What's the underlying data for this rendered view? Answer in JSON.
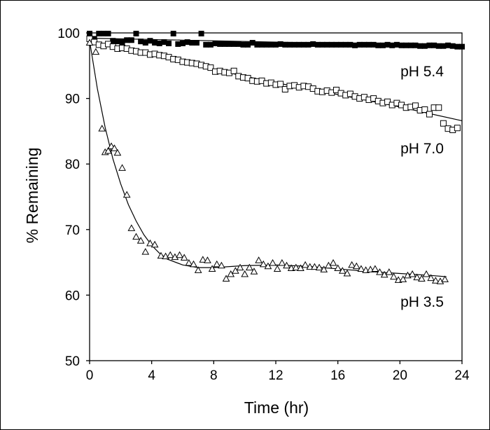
{
  "chart_data": {
    "type": "scatter",
    "title": "",
    "xlabel": "Time (hr)",
    "ylabel": "% Remaining",
    "xlim": [
      0,
      24
    ],
    "ylim": [
      50,
      100
    ],
    "x_ticks": [
      0,
      4,
      8,
      12,
      16,
      20,
      24
    ],
    "y_ticks": [
      50,
      60,
      70,
      80,
      90,
      100
    ],
    "grid": false,
    "legend": "none",
    "series": [
      {
        "name": "pH 5.4",
        "marker": "filled-square",
        "color": "#000000",
        "fit": [
          [
            0,
            99.2
          ],
          [
            6,
            98.9
          ],
          [
            12,
            98.6
          ],
          [
            18,
            98.3
          ],
          [
            24,
            98.0
          ]
        ],
        "points": [
          [
            0,
            99.9
          ],
          [
            0.3,
            99.1
          ],
          [
            0.6,
            99.9
          ],
          [
            0.9,
            99.9
          ],
          [
            1.2,
            99.9
          ],
          [
            1.5,
            98.8
          ],
          [
            1.8,
            98.7
          ],
          [
            2.1,
            98.6
          ],
          [
            2.4,
            98.9
          ],
          [
            2.7,
            98.9
          ],
          [
            3.0,
            99.9
          ],
          [
            3.3,
            98.7
          ],
          [
            3.6,
            98.5
          ],
          [
            3.9,
            98.8
          ],
          [
            4.2,
            98.5
          ],
          [
            4.5,
            98.4
          ],
          [
            4.8,
            98.6
          ],
          [
            5.1,
            98.4
          ],
          [
            5.4,
            99.9
          ],
          [
            5.7,
            98.3
          ],
          [
            6.0,
            98.4
          ],
          [
            6.3,
            98.6
          ],
          [
            6.6,
            98.5
          ],
          [
            6.9,
            98.5
          ],
          [
            7.2,
            99.9
          ],
          [
            7.5,
            98.2
          ],
          [
            7.8,
            98.2
          ],
          [
            8.1,
            98.4
          ],
          [
            8.4,
            98.3
          ],
          [
            8.7,
            98.3
          ],
          [
            9.0,
            98.3
          ],
          [
            9.3,
            98.3
          ],
          [
            9.6,
            98.3
          ],
          [
            9.9,
            98.2
          ],
          [
            10.2,
            98.2
          ],
          [
            10.5,
            98.5
          ],
          [
            10.8,
            98.2
          ],
          [
            11.1,
            98.2
          ],
          [
            11.4,
            98.2
          ],
          [
            11.7,
            98.2
          ],
          [
            12.0,
            98.2
          ],
          [
            12.3,
            98.3
          ],
          [
            12.6,
            98.2
          ],
          [
            12.9,
            98.2
          ],
          [
            13.2,
            98.2
          ],
          [
            13.5,
            98.2
          ],
          [
            13.8,
            98.2
          ],
          [
            14.1,
            98.2
          ],
          [
            14.4,
            98.3
          ],
          [
            14.7,
            98.2
          ],
          [
            15.0,
            98.2
          ],
          [
            15.3,
            98.2
          ],
          [
            15.6,
            98.2
          ],
          [
            15.9,
            98.2
          ],
          [
            16.2,
            98.2
          ],
          [
            16.5,
            98.2
          ],
          [
            16.8,
            98.2
          ],
          [
            17.1,
            98.1
          ],
          [
            17.4,
            98.2
          ],
          [
            17.7,
            98.2
          ],
          [
            18.0,
            98.2
          ],
          [
            18.3,
            98.2
          ],
          [
            18.6,
            98.1
          ],
          [
            18.9,
            98.1
          ],
          [
            19.2,
            98.2
          ],
          [
            19.5,
            98.1
          ],
          [
            19.8,
            98.2
          ],
          [
            20.1,
            98.1
          ],
          [
            20.4,
            98.1
          ],
          [
            20.7,
            98.1
          ],
          [
            21.0,
            98.1
          ],
          [
            21.3,
            98.0
          ],
          [
            21.6,
            98.0
          ],
          [
            21.9,
            98.1
          ],
          [
            22.2,
            98.1
          ],
          [
            22.5,
            98.0
          ],
          [
            22.8,
            98.0
          ],
          [
            23.1,
            98.1
          ],
          [
            23.4,
            98.0
          ],
          [
            23.7,
            97.9
          ],
          [
            24.0,
            97.9
          ]
        ]
      },
      {
        "name": "pH 7.0",
        "marker": "open-square",
        "color": "#000000",
        "fit": [
          [
            0,
            98.8
          ],
          [
            4,
            96.6
          ],
          [
            8,
            94.4
          ],
          [
            12,
            92.4
          ],
          [
            16,
            90.6
          ],
          [
            20,
            88.7
          ],
          [
            24,
            86.6
          ]
        ],
        "points": [
          [
            0,
            99.1
          ],
          [
            0.3,
            98.6
          ],
          [
            0.6,
            98.2
          ],
          [
            0.9,
            98.0
          ],
          [
            1.2,
            98.3
          ],
          [
            1.5,
            97.9
          ],
          [
            1.8,
            97.6
          ],
          [
            2.1,
            97.7
          ],
          [
            2.4,
            97.6
          ],
          [
            2.7,
            97.3
          ],
          [
            3.0,
            97.2
          ],
          [
            3.3,
            97.0
          ],
          [
            3.6,
            97.0
          ],
          [
            3.9,
            96.7
          ],
          [
            4.2,
            96.8
          ],
          [
            4.5,
            96.6
          ],
          [
            4.8,
            96.5
          ],
          [
            5.1,
            96.3
          ],
          [
            5.4,
            96.0
          ],
          [
            5.7,
            95.9
          ],
          [
            6.0,
            95.6
          ],
          [
            6.3,
            95.5
          ],
          [
            6.6,
            95.4
          ],
          [
            6.9,
            95.3
          ],
          [
            7.2,
            95.1
          ],
          [
            7.5,
            94.9
          ],
          [
            7.8,
            94.7
          ],
          [
            8.1,
            94.1
          ],
          [
            8.4,
            94.2
          ],
          [
            8.7,
            94.0
          ],
          [
            9.0,
            93.9
          ],
          [
            9.3,
            94.2
          ],
          [
            9.6,
            93.4
          ],
          [
            9.9,
            93.2
          ],
          [
            10.2,
            93.1
          ],
          [
            10.5,
            92.7
          ],
          [
            10.8,
            92.6
          ],
          [
            11.1,
            92.7
          ],
          [
            11.4,
            92.3
          ],
          [
            11.7,
            92.4
          ],
          [
            12.0,
            92.1
          ],
          [
            12.3,
            92.2
          ],
          [
            12.6,
            91.4
          ],
          [
            12.9,
            91.9
          ],
          [
            13.2,
            92.0
          ],
          [
            13.5,
            91.7
          ],
          [
            13.8,
            91.9
          ],
          [
            14.1,
            91.8
          ],
          [
            14.4,
            91.5
          ],
          [
            14.7,
            91.1
          ],
          [
            15.0,
            91.0
          ],
          [
            15.3,
            91.2
          ],
          [
            15.6,
            90.9
          ],
          [
            15.9,
            91.3
          ],
          [
            16.2,
            90.8
          ],
          [
            16.5,
            90.5
          ],
          [
            16.8,
            90.7
          ],
          [
            17.1,
            90.3
          ],
          [
            17.4,
            90.0
          ],
          [
            17.7,
            90.2
          ],
          [
            18.0,
            89.8
          ],
          [
            18.3,
            90.0
          ],
          [
            18.6,
            89.6
          ],
          [
            18.9,
            89.3
          ],
          [
            19.2,
            89.5
          ],
          [
            19.5,
            89.0
          ],
          [
            19.8,
            89.3
          ],
          [
            20.1,
            89.0
          ],
          [
            20.4,
            88.6
          ],
          [
            20.7,
            88.7
          ],
          [
            21.0,
            88.9
          ],
          [
            21.3,
            88.2
          ],
          [
            21.6,
            88.3
          ],
          [
            21.9,
            87.6
          ],
          [
            22.2,
            88.6
          ],
          [
            22.5,
            88.6
          ],
          [
            22.8,
            86.2
          ],
          [
            23.1,
            85.4
          ],
          [
            23.4,
            85.2
          ],
          [
            23.7,
            85.5
          ]
        ]
      },
      {
        "name": "pH 3.5",
        "marker": "open-triangle",
        "color": "#000000",
        "fit": [
          [
            0,
            98.8
          ],
          [
            0.5,
            91.5
          ],
          [
            1,
            85.6
          ],
          [
            1.5,
            80.8
          ],
          [
            2,
            77.0
          ],
          [
            2.5,
            73.8
          ],
          [
            3,
            71.3
          ],
          [
            3.5,
            69.2
          ],
          [
            4,
            67.6
          ],
          [
            4.5,
            66.4
          ],
          [
            5,
            65.5
          ],
          [
            6,
            64.6
          ],
          [
            7,
            64.2
          ],
          [
            8,
            64.2
          ],
          [
            10,
            64.5
          ],
          [
            12,
            64.6
          ],
          [
            14,
            64.4
          ],
          [
            16,
            64.0
          ],
          [
            18,
            63.6
          ],
          [
            20,
            63.3
          ],
          [
            22,
            63.0
          ],
          [
            23,
            62.8
          ]
        ],
        "points": [
          [
            0,
            98.5
          ],
          [
            0.4,
            97.1
          ],
          [
            0.8,
            85.4
          ],
          [
            1.0,
            81.8
          ],
          [
            1.2,
            82.0
          ],
          [
            1.4,
            82.7
          ],
          [
            1.6,
            82.4
          ],
          [
            1.8,
            81.7
          ],
          [
            2.1,
            79.4
          ],
          [
            2.4,
            75.3
          ],
          [
            2.7,
            70.2
          ],
          [
            3.0,
            68.9
          ],
          [
            3.3,
            68.3
          ],
          [
            3.6,
            66.6
          ],
          [
            3.9,
            67.9
          ],
          [
            4.2,
            67.7
          ],
          [
            4.6,
            66.0
          ],
          [
            4.9,
            65.9
          ],
          [
            5.2,
            66.1
          ],
          [
            5.5,
            65.8
          ],
          [
            5.8,
            66.1
          ],
          [
            6.1,
            65.7
          ],
          [
            6.4,
            64.9
          ],
          [
            6.7,
            64.7
          ],
          [
            7.0,
            63.8
          ],
          [
            7.3,
            65.4
          ],
          [
            7.6,
            65.3
          ],
          [
            7.9,
            64.0
          ],
          [
            8.2,
            64.7
          ],
          [
            8.5,
            64.5
          ],
          [
            8.8,
            62.5
          ],
          [
            9.1,
            63.2
          ],
          [
            9.4,
            63.7
          ],
          [
            9.7,
            64.2
          ],
          [
            10.0,
            63.2
          ],
          [
            10.3,
            64.2
          ],
          [
            10.6,
            63.6
          ],
          [
            10.9,
            65.3
          ],
          [
            11.2,
            64.7
          ],
          [
            11.5,
            64.4
          ],
          [
            11.8,
            64.9
          ],
          [
            12.1,
            64.0
          ],
          [
            12.4,
            64.9
          ],
          [
            12.7,
            64.5
          ],
          [
            13.0,
            64.1
          ],
          [
            13.3,
            64.2
          ],
          [
            13.6,
            64.1
          ],
          [
            13.9,
            64.6
          ],
          [
            14.2,
            64.3
          ],
          [
            14.5,
            64.3
          ],
          [
            14.8,
            64.2
          ],
          [
            15.1,
            63.9
          ],
          [
            15.4,
            64.5
          ],
          [
            15.7,
            64.9
          ],
          [
            16.0,
            64.1
          ],
          [
            16.3,
            63.7
          ],
          [
            16.6,
            63.3
          ],
          [
            16.9,
            64.6
          ],
          [
            17.2,
            64.4
          ],
          [
            17.5,
            64.0
          ],
          [
            17.8,
            63.8
          ],
          [
            18.1,
            63.9
          ],
          [
            18.4,
            64.0
          ],
          [
            18.7,
            63.5
          ],
          [
            19.0,
            63.1
          ],
          [
            19.3,
            63.5
          ],
          [
            19.6,
            62.8
          ],
          [
            19.9,
            62.3
          ],
          [
            20.2,
            62.4
          ],
          [
            20.5,
            63.0
          ],
          [
            20.8,
            63.2
          ],
          [
            21.1,
            62.7
          ],
          [
            21.4,
            62.5
          ],
          [
            21.7,
            63.2
          ],
          [
            22.0,
            62.6
          ],
          [
            22.3,
            62.2
          ],
          [
            22.6,
            62.1
          ],
          [
            22.9,
            62.4
          ]
        ]
      }
    ]
  }
}
